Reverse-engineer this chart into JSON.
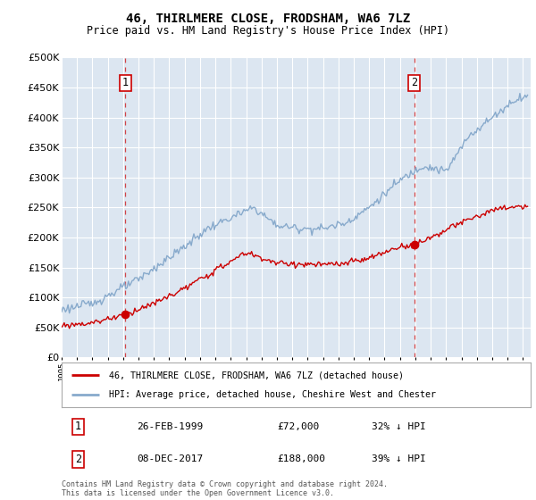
{
  "title": "46, THIRLMERE CLOSE, FRODSHAM, WA6 7LZ",
  "subtitle": "Price paid vs. HM Land Registry's House Price Index (HPI)",
  "ylim": [
    0,
    500000
  ],
  "yticks": [
    0,
    50000,
    100000,
    150000,
    200000,
    250000,
    300000,
    350000,
    400000,
    450000,
    500000
  ],
  "xlim_start": 1995.0,
  "xlim_end": 2025.5,
  "background_color": "#dce6f1",
  "fig_bg_color": "#ffffff",
  "grid_color": "#ffffff",
  "sale1_year": 1999.15,
  "sale1_price": 72000,
  "sale2_year": 2017.92,
  "sale2_price": 188000,
  "legend_line1": "46, THIRLMERE CLOSE, FRODSHAM, WA6 7LZ (detached house)",
  "legend_line2": "HPI: Average price, detached house, Cheshire West and Chester",
  "table_row1_num": "1",
  "table_row1_date": "26-FEB-1999",
  "table_row1_price": "£72,000",
  "table_row1_hpi": "32% ↓ HPI",
  "table_row2_num": "2",
  "table_row2_date": "08-DEC-2017",
  "table_row2_price": "£188,000",
  "table_row2_hpi": "39% ↓ HPI",
  "footer": "Contains HM Land Registry data © Crown copyright and database right 2024.\nThis data is licensed under the Open Government Licence v3.0.",
  "line_color_property": "#cc0000",
  "line_color_hpi": "#88aacc",
  "dashed_line_color": "#cc0000",
  "hpi_anchor_years": [
    1995.0,
    1997.0,
    2000.0,
    2003.0,
    2004.5,
    2007.5,
    2009.0,
    2010.5,
    2012.0,
    2013.5,
    2015.0,
    2017.0,
    2018.5,
    2020.0,
    2021.5,
    2022.5,
    2023.5,
    2024.5,
    2025.0
  ],
  "hpi_anchor_vals": [
    80000,
    90000,
    130000,
    185000,
    215000,
    250000,
    220000,
    215000,
    215000,
    225000,
    250000,
    295000,
    320000,
    310000,
    370000,
    390000,
    410000,
    430000,
    435000
  ],
  "prop_anchor_years": [
    1995.0,
    1997.0,
    1999.15,
    2001.0,
    2003.0,
    2005.0,
    2007.0,
    2009.0,
    2011.0,
    2013.0,
    2015.0,
    2017.0,
    2017.92,
    2019.0,
    2021.0,
    2023.0,
    2024.5,
    2025.0
  ],
  "prop_anchor_vals": [
    53000,
    58000,
    72000,
    90000,
    115000,
    145000,
    175000,
    157000,
    155000,
    155000,
    165000,
    185000,
    188000,
    200000,
    225000,
    245000,
    252000,
    250000
  ]
}
